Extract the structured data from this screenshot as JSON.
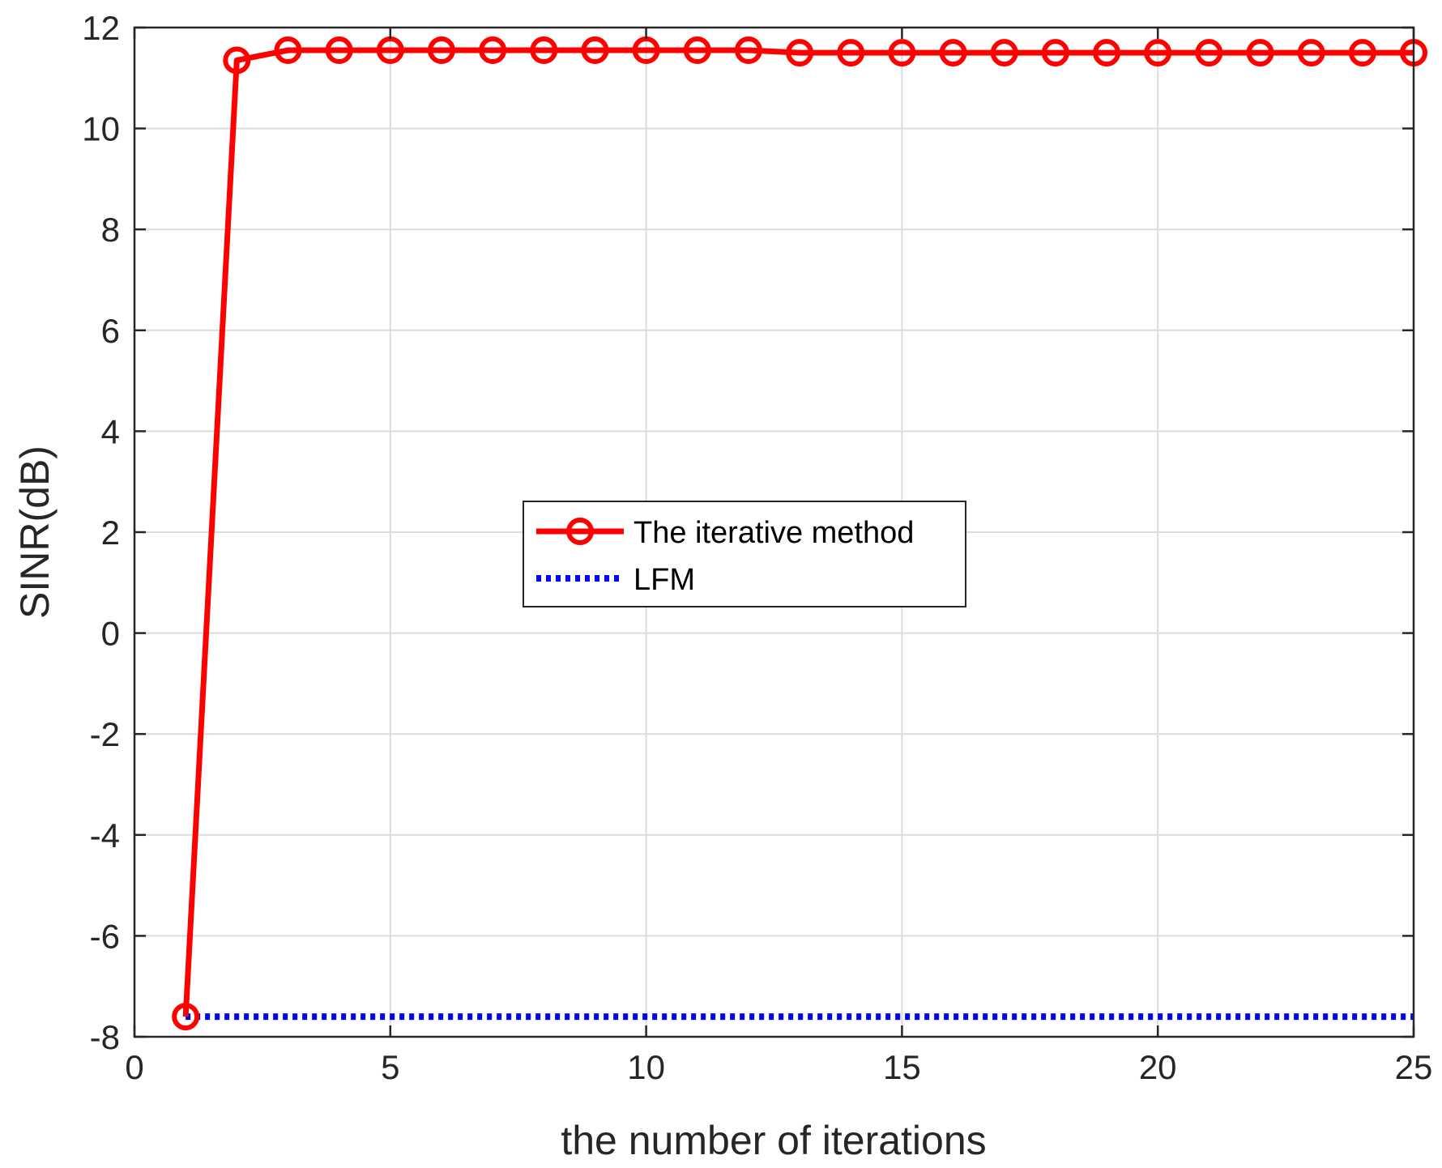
{
  "chart_data": {
    "type": "line",
    "title": "",
    "xlabel": "the number of iterations",
    "ylabel": "SINR(dB)",
    "xlim": [
      0,
      25
    ],
    "ylim": [
      -8,
      12
    ],
    "x_ticks": [
      "0",
      "5",
      "10",
      "15",
      "20",
      "25"
    ],
    "y_ticks": [
      "-8",
      "-6",
      "-4",
      "-2",
      "0",
      "2",
      "4",
      "6",
      "8",
      "10",
      "12"
    ],
    "grid": true,
    "legend_position": "center",
    "series": [
      {
        "name": "The iterative method",
        "color": "#ff0000",
        "line_style": "solid",
        "marker": "circle",
        "x": [
          1,
          2,
          3,
          4,
          5,
          6,
          7,
          8,
          9,
          10,
          11,
          12,
          13,
          14,
          15,
          16,
          17,
          18,
          19,
          20,
          21,
          22,
          23,
          24,
          25
        ],
        "y": [
          -7.6,
          11.35,
          11.55,
          11.55,
          11.55,
          11.55,
          11.55,
          11.55,
          11.55,
          11.55,
          11.55,
          11.55,
          11.5,
          11.5,
          11.5,
          11.5,
          11.5,
          11.5,
          11.5,
          11.5,
          11.5,
          11.5,
          11.5,
          11.5,
          11.5
        ]
      },
      {
        "name": "LFM",
        "color": "#0000ff",
        "line_style": "dotted",
        "marker": "none",
        "x": [
          1,
          25
        ],
        "y": [
          -7.6,
          -7.6
        ]
      }
    ]
  }
}
